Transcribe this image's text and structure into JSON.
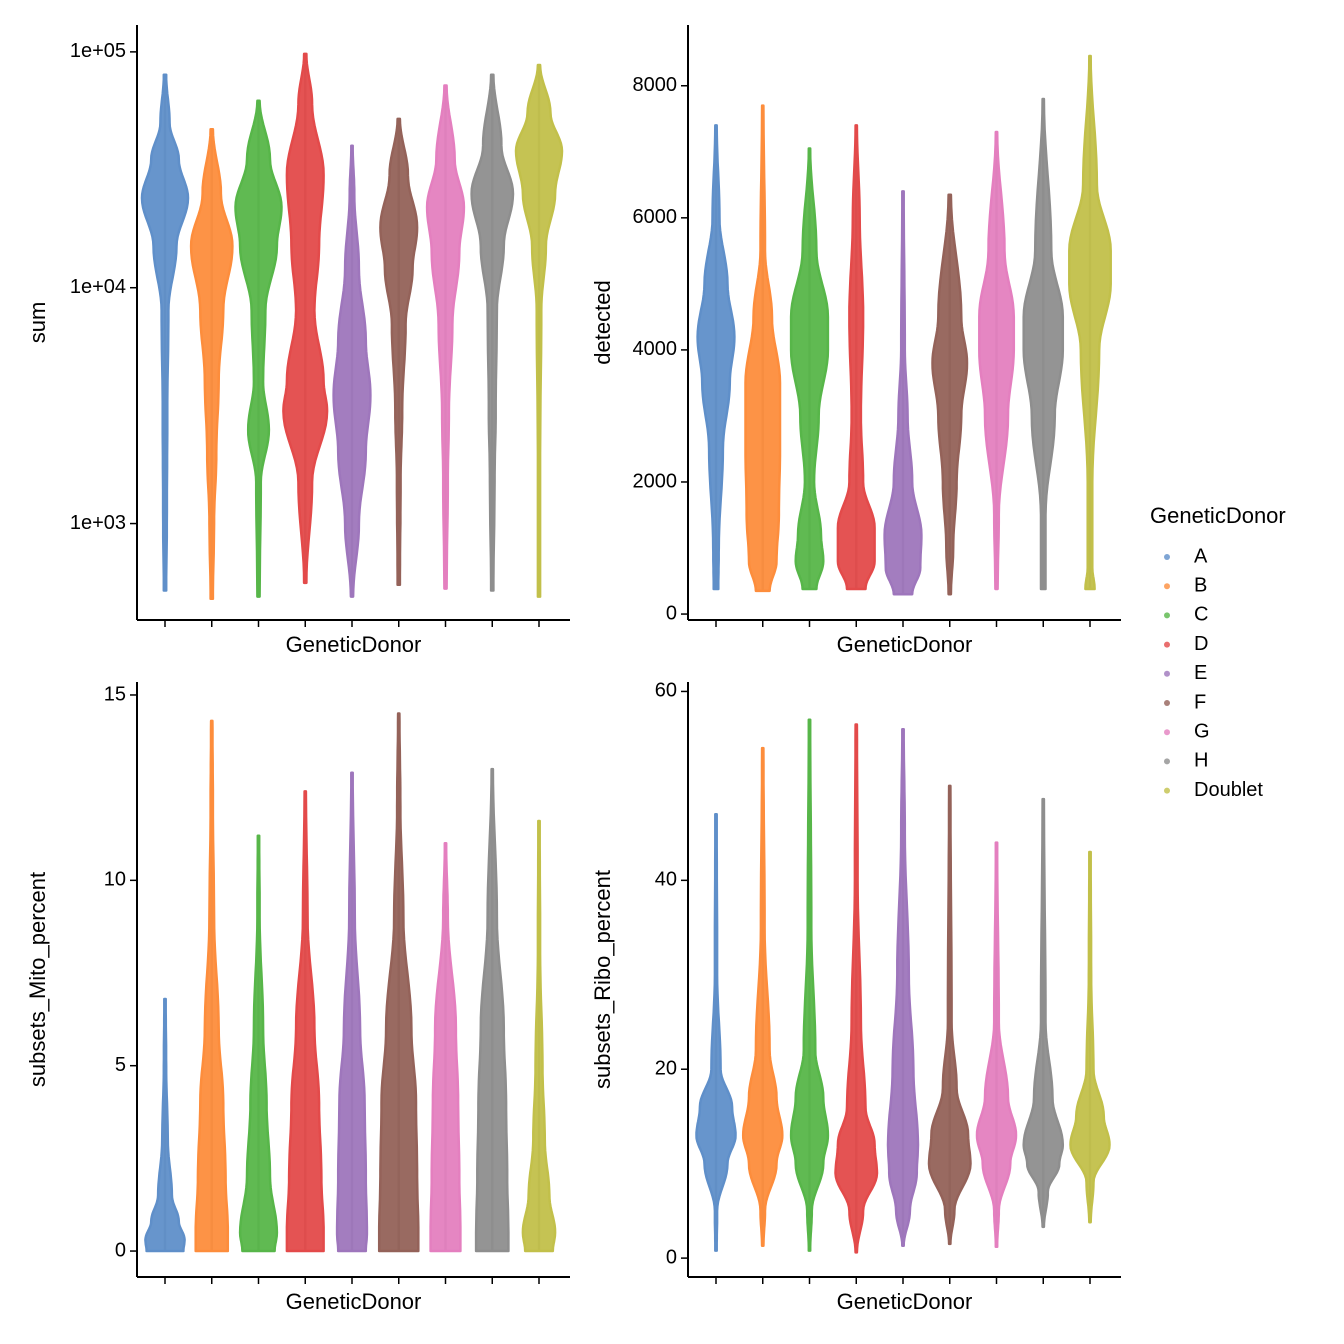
{
  "chart_data": [
    {
      "type": "violin",
      "x_label": "GeneticDonor",
      "y_label": "sum",
      "log": true,
      "ylim": [
        390,
        130000
      ],
      "yticks": [
        {
          "value": 1000,
          "label": "1e+03"
        },
        {
          "value": 10000,
          "label": "1e+04"
        },
        {
          "value": 100000,
          "label": "1e+05"
        }
      ],
      "categories": [
        null,
        null,
        null,
        null,
        null,
        null,
        null,
        null,
        null
      ],
      "legend": "right",
      "legend_title": "GeneticDonor",
      "series": [
        {
          "name": "A",
          "color": "#5f8fc9",
          "y": [
            520,
            1000,
            3000,
            8000,
            15000,
            24000,
            35000,
            50000,
            80000
          ],
          "density": [
            0.05,
            0.08,
            0.1,
            0.15,
            0.5,
            1.0,
            0.6,
            0.2,
            0.05
          ]
        },
        {
          "name": "B",
          "color": "#fd8d3c",
          "y": [
            480,
            1000,
            2000,
            4000,
            8000,
            15000,
            25000,
            47000
          ],
          "density": [
            0.05,
            0.1,
            0.2,
            0.3,
            0.5,
            0.9,
            0.4,
            0.05
          ]
        },
        {
          "name": "C",
          "color": "#57b649",
          "y": [
            490,
            1500,
            2500,
            4000,
            8000,
            15000,
            22000,
            35000,
            62000
          ],
          "density": [
            0.05,
            0.1,
            0.45,
            0.2,
            0.3,
            0.8,
            1.0,
            0.5,
            0.05
          ]
        },
        {
          "name": "D",
          "color": "#e34a4a",
          "y": [
            560,
            1500,
            3000,
            4000,
            8000,
            15000,
            30000,
            60000,
            98000
          ],
          "density": [
            0.05,
            0.3,
            0.95,
            0.8,
            0.4,
            0.6,
            0.8,
            0.3,
            0.05
          ]
        },
        {
          "name": "E",
          "color": "#9e76bc",
          "y": [
            490,
            1000,
            2000,
            3500,
            6000,
            12000,
            25000,
            40000
          ],
          "density": [
            0.05,
            0.3,
            0.6,
            0.8,
            0.6,
            0.3,
            0.1,
            0.03
          ]
        },
        {
          "name": "F",
          "color": "#946259",
          "y": [
            550,
            1500,
            3000,
            7000,
            12000,
            18000,
            30000,
            52000
          ],
          "density": [
            0.05,
            0.08,
            0.15,
            0.3,
            0.6,
            0.8,
            0.4,
            0.05
          ]
        },
        {
          "name": "G",
          "color": "#e47fbf",
          "y": [
            530,
            1500,
            3000,
            7000,
            14000,
            22000,
            35000,
            72000
          ],
          "density": [
            0.05,
            0.1,
            0.15,
            0.3,
            0.6,
            0.8,
            0.4,
            0.05
          ]
        },
        {
          "name": "H",
          "color": "#8e8e8e",
          "y": [
            520,
            1500,
            3000,
            8000,
            15000,
            25000,
            40000,
            80000
          ],
          "density": [
            0.05,
            0.1,
            0.15,
            0.2,
            0.5,
            0.9,
            0.4,
            0.05
          ]
        },
        {
          "name": "Doublet",
          "color": "#c2c04a",
          "y": [
            490,
            2000,
            8000,
            15000,
            25000,
            38000,
            55000,
            88000
          ],
          "density": [
            0.05,
            0.05,
            0.1,
            0.3,
            0.7,
            1.0,
            0.5,
            0.05
          ]
        }
      ]
    },
    {
      "type": "violin",
      "x_label": "GeneticDonor",
      "y_label": "detected",
      "ylim": [
        -90,
        8920
      ],
      "yticks": [
        0,
        2000,
        4000,
        6000,
        8000
      ],
      "categories": [
        null,
        null,
        null,
        null,
        null,
        null,
        null,
        null,
        null
      ],
      "series": [
        {
          "name": "A",
          "color": "#5f8fc9",
          "y": [
            380,
            1000,
            2500,
            3500,
            4200,
            5000,
            6000,
            7400
          ],
          "density": [
            0.1,
            0.12,
            0.3,
            0.6,
            0.8,
            0.5,
            0.15,
            0.03
          ]
        },
        {
          "name": "B",
          "color": "#fd8d3c",
          "y": [
            350,
            800,
            1500,
            2500,
            3500,
            4500,
            5500,
            7700
          ],
          "density": [
            0.3,
            0.6,
            0.7,
            0.75,
            0.75,
            0.4,
            0.1,
            0.03
          ]
        },
        {
          "name": "C",
          "color": "#57b649",
          "y": [
            380,
            800,
            1200,
            2000,
            3000,
            4000,
            4500,
            5500,
            7050
          ],
          "density": [
            0.3,
            0.6,
            0.5,
            0.2,
            0.4,
            0.8,
            0.8,
            0.3,
            0.03
          ]
        },
        {
          "name": "D",
          "color": "#e34a4a",
          "y": [
            380,
            800,
            1300,
            2000,
            3000,
            4500,
            6000,
            7400
          ],
          "density": [
            0.4,
            0.8,
            0.8,
            0.3,
            0.2,
            0.3,
            0.15,
            0.03
          ]
        },
        {
          "name": "E",
          "color": "#9e76bc",
          "y": [
            300,
            700,
            1200,
            2000,
            3000,
            4000,
            6400
          ],
          "density": [
            0.4,
            0.75,
            0.8,
            0.4,
            0.2,
            0.08,
            0.03
          ]
        },
        {
          "name": "F",
          "color": "#946259",
          "y": [
            300,
            1000,
            2000,
            3000,
            3800,
            4500,
            6350
          ],
          "density": [
            0.05,
            0.15,
            0.3,
            0.5,
            0.75,
            0.5,
            0.05
          ]
        },
        {
          "name": "G",
          "color": "#e47fbf",
          "y": [
            380,
            1500,
            3000,
            4000,
            4500,
            5500,
            7300
          ],
          "density": [
            0.05,
            0.1,
            0.5,
            0.75,
            0.75,
            0.35,
            0.03
          ]
        },
        {
          "name": "H",
          "color": "#8e8e8e",
          "y": [
            380,
            1500,
            3000,
            4000,
            4500,
            5500,
            7800
          ],
          "density": [
            0.1,
            0.1,
            0.5,
            0.85,
            0.85,
            0.35,
            0.03
          ]
        },
        {
          "name": "Doublet",
          "color": "#c2c04a",
          "y": [
            380,
            700,
            2000,
            4000,
            5000,
            5500,
            6500,
            8450
          ],
          "density": [
            0.2,
            0.1,
            0.1,
            0.4,
            0.9,
            0.9,
            0.3,
            0.03
          ]
        }
      ]
    },
    {
      "type": "violin",
      "x_label": "GeneticDonor",
      "y_label": "subsets_Mito_percent",
      "ylim": [
        -0.7,
        15.35
      ],
      "yticks": [
        0,
        5,
        10,
        15
      ],
      "categories": [
        null,
        null,
        null,
        null,
        null,
        null,
        null,
        null,
        null
      ],
      "series": [
        {
          "name": "A",
          "color": "#5f8fc9",
          "y": [
            0,
            0.3,
            0.8,
            1.5,
            3,
            5,
            6.8
          ],
          "density": [
            0.8,
            0.85,
            0.6,
            0.3,
            0.12,
            0.05,
            0.03
          ]
        },
        {
          "name": "B",
          "color": "#fd8d3c",
          "y": [
            0,
            0.5,
            2,
            4,
            6,
            9,
            12,
            14.3
          ],
          "density": [
            0.7,
            0.7,
            0.6,
            0.5,
            0.3,
            0.1,
            0.05,
            0.03
          ]
        },
        {
          "name": "C",
          "color": "#57b649",
          "y": [
            0,
            0.5,
            2,
            4,
            6,
            9,
            11.2
          ],
          "density": [
            0.7,
            0.8,
            0.5,
            0.35,
            0.2,
            0.05,
            0.03
          ]
        },
        {
          "name": "D",
          "color": "#e34a4a",
          "y": [
            0,
            0.5,
            2,
            4,
            6,
            9,
            12.4
          ],
          "density": [
            0.8,
            0.8,
            0.7,
            0.6,
            0.4,
            0.1,
            0.03
          ]
        },
        {
          "name": "E",
          "color": "#9e76bc",
          "y": [
            0,
            0.5,
            2,
            4,
            6,
            9,
            12.9
          ],
          "density": [
            0.6,
            0.65,
            0.6,
            0.55,
            0.35,
            0.12,
            0.03
          ]
        },
        {
          "name": "F",
          "color": "#946259",
          "y": [
            0,
            0.5,
            2,
            4,
            6,
            9,
            12,
            14.5
          ],
          "density": [
            0.85,
            0.85,
            0.8,
            0.75,
            0.55,
            0.2,
            0.07,
            0.03
          ]
        },
        {
          "name": "G",
          "color": "#e47fbf",
          "y": [
            0,
            0.5,
            2,
            4,
            6,
            9,
            11
          ],
          "density": [
            0.65,
            0.65,
            0.6,
            0.55,
            0.45,
            0.1,
            0.03
          ]
        },
        {
          "name": "H",
          "color": "#8e8e8e",
          "y": [
            0,
            0.5,
            2,
            4,
            6,
            9,
            13
          ],
          "density": [
            0.7,
            0.7,
            0.65,
            0.6,
            0.5,
            0.2,
            0.03
          ]
        },
        {
          "name": "Doublet",
          "color": "#c2c04a",
          "y": [
            0,
            0.5,
            1.5,
            3,
            5,
            8,
            11.6
          ],
          "density": [
            0.6,
            0.7,
            0.45,
            0.25,
            0.15,
            0.05,
            0.03
          ]
        }
      ]
    },
    {
      "type": "violin",
      "x_label": "GeneticDonor",
      "y_label": "subsets_Ribo_percent",
      "ylim": [
        -2,
        61
      ],
      "yticks": [
        0,
        20,
        40,
        60
      ],
      "categories": [
        null,
        null,
        null,
        null,
        null,
        null,
        null,
        null,
        null
      ],
      "series": [
        {
          "name": "A",
          "color": "#5f8fc9",
          "y": [
            0.8,
            5,
            10,
            13,
            16,
            20,
            30,
            47
          ],
          "density": [
            0.03,
            0.05,
            0.5,
            0.85,
            0.7,
            0.2,
            0.05,
            0.03
          ]
        },
        {
          "name": "B",
          "color": "#fd8d3c",
          "y": [
            1.3,
            5,
            10,
            13,
            17,
            22,
            35,
            54
          ],
          "density": [
            0.03,
            0.1,
            0.6,
            0.85,
            0.6,
            0.3,
            0.08,
            0.03
          ]
        },
        {
          "name": "C",
          "color": "#57b649",
          "y": [
            0.8,
            5,
            10,
            13,
            17,
            22,
            35,
            57
          ],
          "density": [
            0.03,
            0.1,
            0.6,
            0.8,
            0.6,
            0.25,
            0.08,
            0.03
          ]
        },
        {
          "name": "D",
          "color": "#e34a4a",
          "y": [
            0.6,
            5,
            9,
            12,
            16,
            25,
            40,
            56.5
          ],
          "density": [
            0.03,
            0.3,
            0.9,
            0.8,
            0.4,
            0.2,
            0.06,
            0.03
          ]
        },
        {
          "name": "E",
          "color": "#9e76bc",
          "y": [
            1.3,
            5,
            9,
            12,
            20,
            30,
            45,
            56
          ],
          "density": [
            0.03,
            0.3,
            0.6,
            0.65,
            0.45,
            0.25,
            0.08,
            0.03
          ]
        },
        {
          "name": "F",
          "color": "#946259",
          "y": [
            1.5,
            5,
            10,
            13,
            18,
            25,
            50
          ],
          "density": [
            0.03,
            0.2,
            0.9,
            0.8,
            0.3,
            0.08,
            0.03
          ]
        },
        {
          "name": "G",
          "color": "#e47fbf",
          "y": [
            1.2,
            5,
            10,
            13,
            17,
            25,
            44
          ],
          "density": [
            0.03,
            0.1,
            0.6,
            0.85,
            0.5,
            0.1,
            0.03
          ]
        },
        {
          "name": "H",
          "color": "#8e8e8e",
          "y": [
            3.3,
            7,
            10,
            12,
            17,
            25,
            48.6
          ],
          "density": [
            0.03,
            0.2,
            0.7,
            0.85,
            0.4,
            0.1,
            0.03
          ]
        },
        {
          "name": "Doublet",
          "color": "#c2c04a",
          "y": [
            3.8,
            8,
            12,
            15,
            20,
            30,
            43
          ],
          "density": [
            0.03,
            0.15,
            0.85,
            0.6,
            0.15,
            0.05,
            0.03
          ]
        }
      ]
    }
  ]
}
